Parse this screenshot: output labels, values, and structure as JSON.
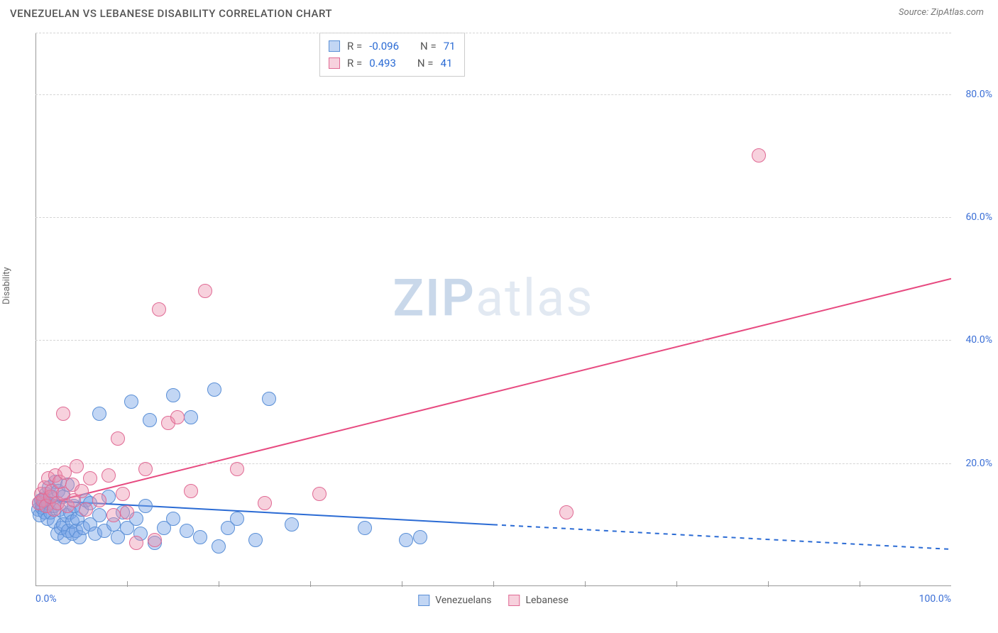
{
  "title": "VENEZUELAN VS LEBANESE DISABILITY CORRELATION CHART",
  "source": "Source: ZipAtlas.com",
  "ylabel": "Disability",
  "watermark": {
    "zip": "ZIP",
    "atlas": "atlas"
  },
  "chart": {
    "type": "scatter",
    "background_color": "#ffffff",
    "grid_color": "#d5d5d5",
    "axis_color": "#999999",
    "tick_label_color": "#3b6fd6",
    "tick_fontsize": 14,
    "xlim": [
      0,
      100
    ],
    "ylim": [
      0,
      90
    ],
    "x_ticks_minor": [
      10,
      20,
      30,
      40,
      50,
      60,
      70,
      80,
      90
    ],
    "y_gridlines": [
      20,
      40,
      60,
      80,
      90
    ],
    "x_labels": [
      {
        "v": 0,
        "t": "0.0%",
        "align": "left"
      },
      {
        "v": 100,
        "t": "100.0%",
        "align": "right"
      }
    ],
    "y_labels": [
      {
        "v": 20,
        "t": "20.0%"
      },
      {
        "v": 40,
        "t": "40.0%"
      },
      {
        "v": 60,
        "t": "60.0%"
      },
      {
        "v": 80,
        "t": "80.0%"
      }
    ],
    "series": [
      {
        "name": "Venezuelans",
        "color_fill": "rgba(120,165,230,0.45)",
        "color_stroke": "#5a8fd6",
        "marker_radius": 10,
        "trend": {
          "x1": 0,
          "y1": 14,
          "x2": 50,
          "y2": 10,
          "dash_from_x": 50,
          "dash_to_x": 100,
          "dash_to_y": 6,
          "color": "#2b6bd4",
          "width": 2
        },
        "points": [
          [
            0.3,
            12.5
          ],
          [
            0.4,
            13.5
          ],
          [
            0.5,
            11.5
          ],
          [
            0.6,
            14.0
          ],
          [
            0.7,
            12.8
          ],
          [
            0.8,
            13.2
          ],
          [
            0.9,
            14.2
          ],
          [
            1.0,
            12.0
          ],
          [
            1.0,
            13.8
          ],
          [
            1.2,
            15.0
          ],
          [
            1.3,
            11.0
          ],
          [
            1.4,
            13.5
          ],
          [
            1.5,
            16.0
          ],
          [
            1.6,
            12.0
          ],
          [
            1.8,
            14.5
          ],
          [
            2.0,
            10.5
          ],
          [
            2.0,
            13.0
          ],
          [
            2.2,
            17.0
          ],
          [
            2.4,
            8.5
          ],
          [
            2.5,
            15.5
          ],
          [
            2.6,
            12.5
          ],
          [
            2.8,
            9.5
          ],
          [
            3.0,
            10.0
          ],
          [
            3.0,
            14.5
          ],
          [
            3.2,
            8.0
          ],
          [
            3.4,
            11.5
          ],
          [
            3.5,
            16.5
          ],
          [
            3.6,
            9.0
          ],
          [
            3.8,
            12.0
          ],
          [
            4.0,
            8.5
          ],
          [
            4.0,
            10.5
          ],
          [
            4.2,
            13.0
          ],
          [
            4.4,
            9.0
          ],
          [
            4.6,
            11.0
          ],
          [
            4.8,
            8.0
          ],
          [
            5.0,
            12.5
          ],
          [
            5.2,
            9.5
          ],
          [
            5.5,
            14.0
          ],
          [
            6.0,
            10.0
          ],
          [
            6.0,
            13.5
          ],
          [
            6.5,
            8.5
          ],
          [
            7.0,
            11.5
          ],
          [
            7.0,
            28.0
          ],
          [
            7.5,
            9.0
          ],
          [
            8.0,
            14.5
          ],
          [
            8.5,
            10.0
          ],
          [
            9.0,
            8.0
          ],
          [
            9.5,
            12.0
          ],
          [
            10.0,
            9.5
          ],
          [
            10.5,
            30.0
          ],
          [
            11.0,
            11.0
          ],
          [
            11.5,
            8.5
          ],
          [
            12.0,
            13.0
          ],
          [
            12.5,
            27.0
          ],
          [
            13.0,
            7.0
          ],
          [
            14.0,
            9.5
          ],
          [
            15.0,
            11.0
          ],
          [
            15.0,
            31.0
          ],
          [
            16.5,
            9.0
          ],
          [
            17.0,
            27.5
          ],
          [
            18.0,
            8.0
          ],
          [
            19.5,
            32.0
          ],
          [
            20.0,
            6.5
          ],
          [
            21.0,
            9.5
          ],
          [
            22.0,
            11.0
          ],
          [
            24.0,
            7.5
          ],
          [
            25.5,
            30.5
          ],
          [
            28.0,
            10.0
          ],
          [
            36.0,
            9.5
          ],
          [
            40.5,
            7.5
          ],
          [
            42.0,
            8.0
          ]
        ]
      },
      {
        "name": "Lebanese",
        "color_fill": "rgba(235,140,170,0.40)",
        "color_stroke": "#e06a94",
        "marker_radius": 10,
        "trend": {
          "x1": 0,
          "y1": 13,
          "x2": 100,
          "y2": 50,
          "color": "#e74a80",
          "width": 2
        },
        "points": [
          [
            0.4,
            13.5
          ],
          [
            0.6,
            15.0
          ],
          [
            0.8,
            14.0
          ],
          [
            1.0,
            16.0
          ],
          [
            1.2,
            13.0
          ],
          [
            1.4,
            17.5
          ],
          [
            1.6,
            14.5
          ],
          [
            1.8,
            15.5
          ],
          [
            2.0,
            12.5
          ],
          [
            2.2,
            18.0
          ],
          [
            2.4,
            13.5
          ],
          [
            2.6,
            17.0
          ],
          [
            3.0,
            15.0
          ],
          [
            3.0,
            28.0
          ],
          [
            3.2,
            18.5
          ],
          [
            3.5,
            13.0
          ],
          [
            4.0,
            16.5
          ],
          [
            4.2,
            14.0
          ],
          [
            4.5,
            19.5
          ],
          [
            5.0,
            15.5
          ],
          [
            5.5,
            12.5
          ],
          [
            6.0,
            17.5
          ],
          [
            7.0,
            14.0
          ],
          [
            8.0,
            18.0
          ],
          [
            8.5,
            11.5
          ],
          [
            9.0,
            24.0
          ],
          [
            9.5,
            15.0
          ],
          [
            10.0,
            12.0
          ],
          [
            11.0,
            7.0
          ],
          [
            12.0,
            19.0
          ],
          [
            13.0,
            7.5
          ],
          [
            13.5,
            45.0
          ],
          [
            14.5,
            26.5
          ],
          [
            15.5,
            27.5
          ],
          [
            17.0,
            15.5
          ],
          [
            18.5,
            48.0
          ],
          [
            22.0,
            19.0
          ],
          [
            25.0,
            13.5
          ],
          [
            31.0,
            15.0
          ],
          [
            58.0,
            12.0
          ],
          [
            79.0,
            70.0
          ]
        ]
      }
    ]
  },
  "legend_top": {
    "rows": [
      {
        "swatch_fill": "rgba(120,165,230,0.45)",
        "swatch_stroke": "#5a8fd6",
        "r_label": "R =",
        "r_val": "-0.096",
        "n_label": "N =",
        "n_val": "71"
      },
      {
        "swatch_fill": "rgba(235,140,170,0.40)",
        "swatch_stroke": "#e06a94",
        "r_label": "R =",
        "r_val": "0.493",
        "n_label": "N =",
        "n_val": "41"
      }
    ]
  },
  "legend_bottom": {
    "items": [
      {
        "swatch_fill": "rgba(120,165,230,0.45)",
        "swatch_stroke": "#5a8fd6",
        "label": "Venezuelans"
      },
      {
        "swatch_fill": "rgba(235,140,170,0.40)",
        "swatch_stroke": "#e06a94",
        "label": "Lebanese"
      }
    ]
  }
}
